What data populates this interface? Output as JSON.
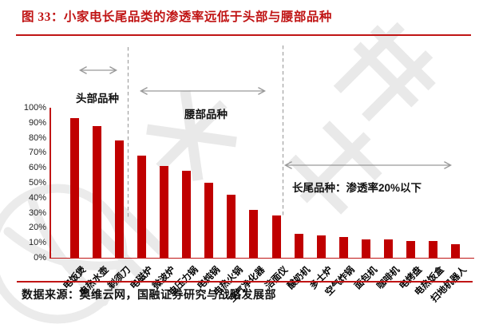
{
  "title": {
    "label": "图 33：小家电长尾品类的渗透率远低于头部与腰部品种"
  },
  "footer": {
    "source": "数据来源：奥维云网，国融证券研究与战略发展部"
  },
  "colors": {
    "accent_red": "#c01414",
    "bar": "#c00000",
    "annotation_gray": "#999999",
    "dashed_line_gray": "#a6a6a6",
    "watermark_gray": "#e9e9e9"
  },
  "chart_data": {
    "type": "bar",
    "title": "图 33：小家电长尾品类的渗透率远低于头部与腰部品种",
    "categories": [
      "电饭煲",
      "电热水壶",
      "剃须刀",
      "电磁炉",
      "微波炉",
      "电压力锅",
      "电炖锅",
      "电热火锅",
      "空气净化器",
      "洁面仪",
      "酸奶机",
      "多士炉",
      "空气炸锅",
      "面包机",
      "咖啡机",
      "电烤盘",
      "电热饭盒",
      "扫地机器人"
    ],
    "values": [
      93,
      88,
      78,
      68,
      61,
      58,
      50,
      42,
      32,
      28,
      16,
      15,
      14,
      12,
      12,
      11,
      11,
      9
    ],
    "unit": "%",
    "xlabel": "",
    "ylabel": "",
    "ylim": [
      0,
      100
    ],
    "yticks": [
      "0%",
      "10%",
      "20%",
      "30%",
      "40%",
      "50%",
      "60%",
      "70%",
      "80%",
      "90%",
      "100%"
    ],
    "grid": false,
    "legend": false,
    "groups": [
      {
        "label": "头部品种",
        "first_bar": 1,
        "last_bar": 3
      },
      {
        "label": "腰部品种",
        "first_bar": 4,
        "last_bar": 10
      },
      {
        "label": "长尾品种：渗透率20%以下",
        "first_bar": 11,
        "last_bar": 18
      }
    ]
  }
}
